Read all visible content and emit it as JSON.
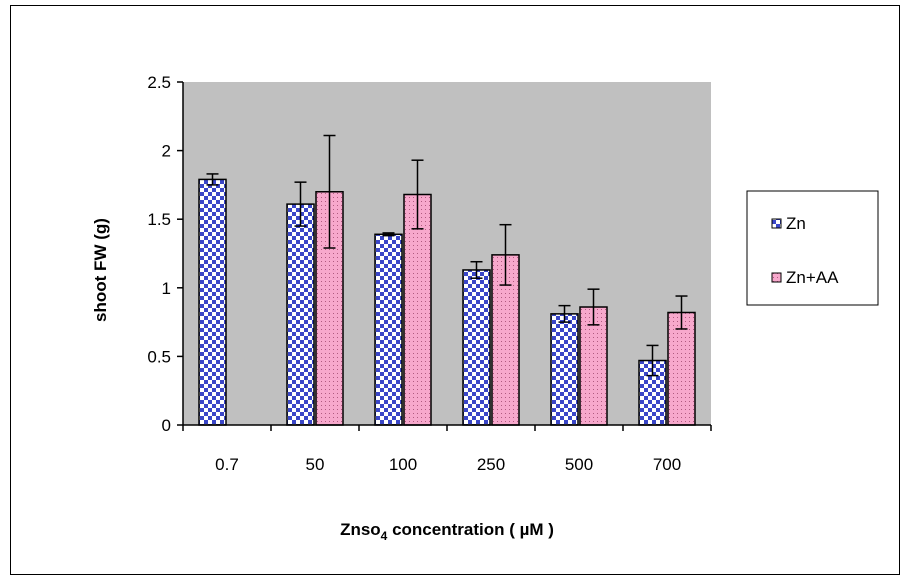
{
  "chart_data": {
    "type": "bar",
    "categories": [
      "0.7",
      "50",
      "100",
      "250",
      "500",
      "700"
    ],
    "series": [
      {
        "name": "Zn",
        "values": [
          1.79,
          1.61,
          1.39,
          1.13,
          0.81,
          0.47
        ],
        "error": [
          0.04,
          0.16,
          0.01,
          0.06,
          0.06,
          0.11
        ],
        "color": "#3a46c8",
        "pattern": "checker"
      },
      {
        "name": "Zn+AA",
        "values": [
          null,
          1.7,
          1.68,
          1.24,
          0.86,
          0.82
        ],
        "error": [
          null,
          0.41,
          0.25,
          0.22,
          0.13,
          0.12
        ],
        "color": "#f7a8cc",
        "pattern": "dots"
      }
    ],
    "xlabel_main": "Znso",
    "xlabel_sub": "4",
    "xlabel_rest": " concentration ( µM )",
    "ylabel": "shoot  FW  (g)",
    "ylim": [
      0,
      2.5
    ],
    "yticks": [
      "0",
      "0.5",
      "1",
      "1.5",
      "2",
      "2.5"
    ],
    "plot_background": "#c0c0c0",
    "grid": false,
    "legend_position": "right"
  }
}
